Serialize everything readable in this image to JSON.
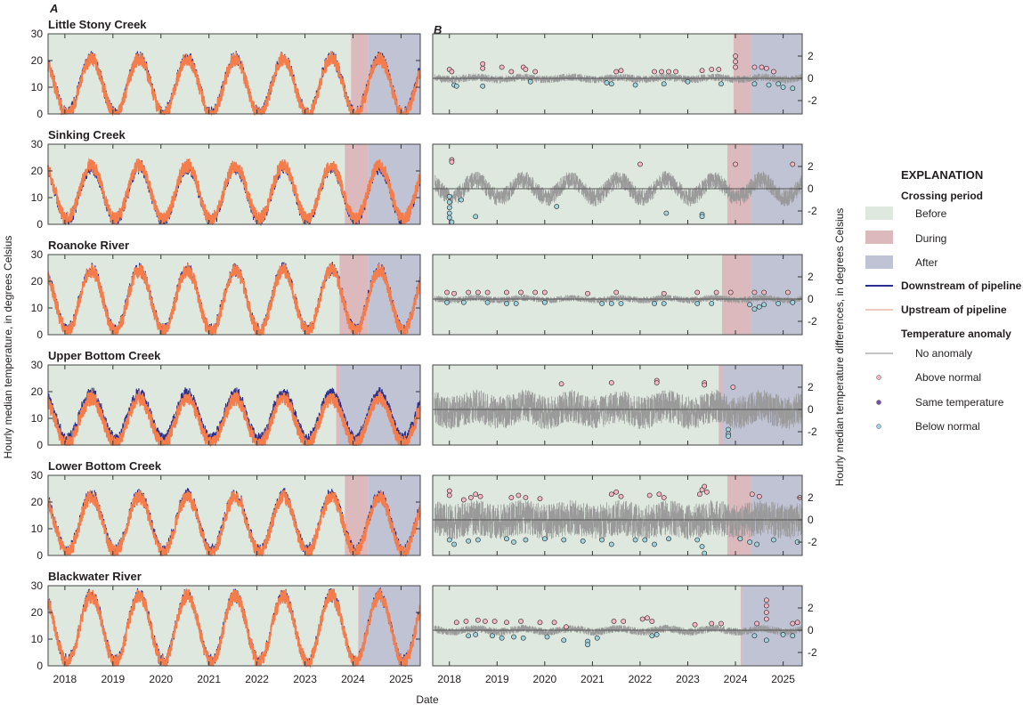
{
  "figure": {
    "panel_a_letter": "A",
    "panel_b_letter": "B",
    "left_ylabel": "Hourly median temperature, in degrees Celsius",
    "right_ylabel": "Hourly median temperature differences, in degrees Celsius",
    "xlabel": "Date"
  },
  "legend": {
    "title": "EXPLANATION",
    "crossing_heading": "Crossing period",
    "before": "Before",
    "during": "During",
    "after": "After",
    "downstream": "Downstream of pipeline",
    "upstream": "Upstream of pipeline",
    "anomaly_heading": "Temperature anomaly",
    "no_anomaly": "No anomaly",
    "above": "Above normal",
    "same": "Same temperature",
    "below": "Below normal"
  },
  "colors": {
    "before": "#dfe8df",
    "during": "#dcb9bd",
    "after": "#bfc3d4",
    "downstream": "#2b2e8c",
    "upstream": "#f47d4b",
    "no_anomaly": "#9a9a9a",
    "above": "#f5b5c3",
    "same": "#7b4ca3",
    "below": "#9fd3dd"
  },
  "chart_data": {
    "type": "line",
    "x_ticks": [
      "2018",
      "2019",
      "2020",
      "2021",
      "2022",
      "2023",
      "2024",
      "2025"
    ],
    "xlim": [
      2017.65,
      2025.4
    ],
    "left_ylim": [
      0,
      30
    ],
    "left_yticks": [
      "0",
      "10",
      "20",
      "30"
    ],
    "right_ylim": [
      -3.2,
      4
    ],
    "right_yticks": [
      "2",
      "0",
      "-2"
    ],
    "sites": [
      {
        "name": "Little Stony Creek",
        "during": [
          2023.96,
          2024.32
        ],
        "after": [
          2024.32,
          2025.4
        ],
        "down_mean": 10.5,
        "down_amp": 10.5,
        "up_offset": -0.4,
        "anom_band": 0.35,
        "anom_season": 0.1,
        "above": [
          [
            2018.0,
            0.8
          ],
          [
            2018.05,
            0.6
          ],
          [
            2018.7,
            1.3
          ],
          [
            2018.7,
            0.9
          ],
          [
            2019.1,
            1.0
          ],
          [
            2019.3,
            0.6
          ],
          [
            2019.55,
            1.0
          ],
          [
            2019.6,
            0.8
          ],
          [
            2019.8,
            0.6
          ],
          [
            2021.5,
            0.6
          ],
          [
            2021.6,
            0.7
          ],
          [
            2022.3,
            0.6
          ],
          [
            2022.45,
            0.6
          ],
          [
            2022.6,
            0.6
          ],
          [
            2022.75,
            0.6
          ],
          [
            2023.3,
            0.7
          ],
          [
            2023.5,
            0.8
          ],
          [
            2023.65,
            0.8
          ],
          [
            2024.0,
            2.0
          ],
          [
            2024.0,
            1.5
          ],
          [
            2024.0,
            1.0
          ],
          [
            2024.4,
            1.0
          ],
          [
            2024.55,
            1.0
          ],
          [
            2024.65,
            0.9
          ],
          [
            2024.8,
            0.6
          ]
        ],
        "below": [
          [
            2018.1,
            -0.6
          ],
          [
            2018.15,
            -0.7
          ],
          [
            2018.7,
            -0.7
          ],
          [
            2019.7,
            -0.3
          ],
          [
            2021.3,
            -0.4
          ],
          [
            2021.4,
            -0.5
          ],
          [
            2021.9,
            -0.6
          ],
          [
            2022.5,
            -0.5
          ],
          [
            2023.0,
            -0.3
          ],
          [
            2023.7,
            -0.5
          ],
          [
            2024.4,
            -0.5
          ],
          [
            2024.7,
            -0.6
          ],
          [
            2024.9,
            -0.5
          ],
          [
            2025.0,
            -0.8
          ],
          [
            2025.2,
            -0.9
          ]
        ]
      },
      {
        "name": "Sinking Creek",
        "during": [
          2023.83,
          2024.32
        ],
        "after": [
          2024.32,
          2025.4
        ],
        "down_mean": 11.5,
        "down_amp": 10,
        "up_offset": 0.5,
        "anom_band": 0.8,
        "anom_season": 0.8,
        "above": [
          [
            2018.05,
            2.6
          ],
          [
            2018.05,
            2.4
          ],
          [
            2022.0,
            2.2
          ],
          [
            2024.0,
            2.2
          ],
          [
            2025.2,
            2.2
          ]
        ],
        "below": [
          [
            2018.0,
            -0.7
          ],
          [
            2018.0,
            -1.2
          ],
          [
            2018.0,
            -1.7
          ],
          [
            2018.0,
            -2.2
          ],
          [
            2018.0,
            -2.6
          ],
          [
            2018.05,
            -3.0
          ],
          [
            2018.25,
            -1.0
          ],
          [
            2018.55,
            -2.5
          ],
          [
            2020.25,
            -1.6
          ],
          [
            2022.55,
            -2.2
          ],
          [
            2023.3,
            -2.3
          ],
          [
            2023.3,
            -2.5
          ]
        ]
      },
      {
        "name": "Roanoke River",
        "during": [
          2023.72,
          2024.32
        ],
        "after": [
          2024.32,
          2025.4
        ],
        "down_mean": 13,
        "down_amp": 11.5,
        "up_offset": -0.3,
        "anom_band": 0.3,
        "anom_season": 0.1,
        "above": [
          [
            2017.95,
            0.6
          ],
          [
            2018.1,
            0.5
          ],
          [
            2018.4,
            0.6
          ],
          [
            2018.6,
            0.6
          ],
          [
            2018.8,
            0.6
          ],
          [
            2019.2,
            0.6
          ],
          [
            2019.5,
            0.6
          ],
          [
            2019.8,
            0.6
          ],
          [
            2020.0,
            0.6
          ],
          [
            2020.9,
            0.5
          ],
          [
            2021.5,
            0.6
          ],
          [
            2022.5,
            0.5
          ],
          [
            2023.2,
            0.6
          ],
          [
            2023.6,
            0.6
          ],
          [
            2023.9,
            0.6
          ],
          [
            2024.4,
            0.6
          ],
          [
            2024.6,
            0.6
          ],
          [
            2025.1,
            0.6
          ]
        ],
        "below": [
          [
            2017.95,
            -0.3
          ],
          [
            2018.3,
            -0.3
          ],
          [
            2018.8,
            -0.3
          ],
          [
            2019.2,
            -0.4
          ],
          [
            2019.4,
            -0.4
          ],
          [
            2020.0,
            -0.3
          ],
          [
            2021.2,
            -0.4
          ],
          [
            2021.4,
            -0.4
          ],
          [
            2021.6,
            -0.4
          ],
          [
            2022.3,
            -0.4
          ],
          [
            2022.5,
            -0.4
          ],
          [
            2023.2,
            -0.4
          ],
          [
            2023.5,
            -0.4
          ],
          [
            2024.3,
            -0.5
          ],
          [
            2024.4,
            -0.9
          ],
          [
            2024.5,
            -0.7
          ],
          [
            2024.6,
            -0.5
          ],
          [
            2024.9,
            -0.4
          ],
          [
            2025.2,
            -0.3
          ]
        ]
      },
      {
        "name": "Upper Bottom Creek",
        "during": [
          2023.65,
          2023.72
        ],
        "after": [
          2023.72,
          2025.4
        ],
        "down_mean": 10.5,
        "down_amp": 8.5,
        "up_offset": -1.5,
        "anom_band": 1.5,
        "anom_season": 0.3,
        "above": [
          [
            2020.35,
            2.3
          ],
          [
            2021.4,
            2.4
          ],
          [
            2022.35,
            2.6
          ],
          [
            2022.35,
            2.4
          ],
          [
            2023.35,
            2.4
          ],
          [
            2023.35,
            2.2
          ],
          [
            2023.95,
            2.0
          ]
        ],
        "below": [
          [
            2023.85,
            -1.8
          ],
          [
            2023.85,
            -2.2
          ],
          [
            2023.85,
            -2.4
          ]
        ]
      },
      {
        "name": "Lower Bottom Creek",
        "during": [
          2023.83,
          2024.32
        ],
        "after": [
          2024.32,
          2025.4
        ],
        "down_mean": 12,
        "down_amp": 10.5,
        "up_offset": -0.5,
        "anom_band": 1.6,
        "anom_season": 0.2,
        "above": [
          [
            2018.0,
            2.6
          ],
          [
            2018.0,
            2.2
          ],
          [
            2018.3,
            1.8
          ],
          [
            2018.45,
            2.0
          ],
          [
            2018.55,
            2.3
          ],
          [
            2018.65,
            2.1
          ],
          [
            2019.3,
            2.0
          ],
          [
            2019.45,
            2.2
          ],
          [
            2019.6,
            2.0
          ],
          [
            2019.9,
            1.9
          ],
          [
            2021.4,
            2.3
          ],
          [
            2021.5,
            2.5
          ],
          [
            2021.6,
            2.1
          ],
          [
            2022.2,
            2.2
          ],
          [
            2022.4,
            2.3
          ],
          [
            2022.5,
            2.0
          ],
          [
            2023.25,
            2.3
          ],
          [
            2023.3,
            2.7
          ],
          [
            2023.35,
            3.0
          ],
          [
            2023.4,
            2.5
          ],
          [
            2024.35,
            2.3
          ],
          [
            2024.5,
            2.1
          ],
          [
            2025.35,
            2.0
          ]
        ],
        "below": [
          [
            2018.0,
            -1.8
          ],
          [
            2018.1,
            -2.2
          ],
          [
            2018.4,
            -1.9
          ],
          [
            2018.6,
            -1.8
          ],
          [
            2019.2,
            -1.7
          ],
          [
            2019.35,
            -2.0
          ],
          [
            2019.6,
            -1.8
          ],
          [
            2020.0,
            -1.7
          ],
          [
            2020.4,
            -1.8
          ],
          [
            2020.8,
            -1.9
          ],
          [
            2021.2,
            -1.8
          ],
          [
            2021.4,
            -2.2
          ],
          [
            2021.9,
            -1.8
          ],
          [
            2022.1,
            -1.8
          ],
          [
            2022.3,
            -2.2
          ],
          [
            2022.6,
            -1.7
          ],
          [
            2023.2,
            -1.8
          ],
          [
            2023.3,
            -2.4
          ],
          [
            2023.35,
            -3.0
          ],
          [
            2024.1,
            -1.7
          ],
          [
            2024.3,
            -2.0
          ],
          [
            2024.45,
            -2.2
          ],
          [
            2024.8,
            -1.8
          ],
          [
            2025.3,
            -2.0
          ]
        ]
      },
      {
        "name": "Blackwater River",
        "during": [
          2024.11,
          2024.15
        ],
        "after": [
          2024.15,
          2025.4
        ],
        "down_mean": 14,
        "down_amp": 12.5,
        "up_offset": -0.3,
        "anom_band": 0.35,
        "anom_season": 0.15,
        "above": [
          [
            2018.15,
            0.7
          ],
          [
            2018.35,
            0.8
          ],
          [
            2018.6,
            0.9
          ],
          [
            2018.75,
            0.8
          ],
          [
            2018.95,
            0.8
          ],
          [
            2019.2,
            0.7
          ],
          [
            2019.5,
            0.8
          ],
          [
            2019.9,
            0.7
          ],
          [
            2020.2,
            0.7
          ],
          [
            2020.45,
            0.3
          ],
          [
            2021.45,
            0.8
          ],
          [
            2021.65,
            0.8
          ],
          [
            2022.05,
            1.0
          ],
          [
            2022.15,
            1.1
          ],
          [
            2022.25,
            0.8
          ],
          [
            2023.15,
            0.5
          ],
          [
            2023.5,
            0.6
          ],
          [
            2023.7,
            0.6
          ],
          [
            2024.45,
            0.6
          ],
          [
            2024.65,
            2.7
          ],
          [
            2024.65,
            2.2
          ],
          [
            2024.65,
            1.6
          ],
          [
            2024.65,
            1.0
          ],
          [
            2025.2,
            0.6
          ],
          [
            2025.3,
            0.7
          ]
        ],
        "below": [
          [
            2018.4,
            -0.5
          ],
          [
            2018.55,
            -0.4
          ],
          [
            2018.9,
            -0.5
          ],
          [
            2019.1,
            -0.7
          ],
          [
            2019.35,
            -0.6
          ],
          [
            2019.55,
            -0.7
          ],
          [
            2020.05,
            -0.6
          ],
          [
            2020.4,
            -0.9
          ],
          [
            2020.9,
            -1.0
          ],
          [
            2020.9,
            -1.3
          ],
          [
            2021.1,
            -0.7
          ],
          [
            2022.25,
            -0.5
          ],
          [
            2022.35,
            -0.4
          ],
          [
            2024.4,
            -0.5
          ],
          [
            2024.65,
            -0.9
          ],
          [
            2025.0,
            -0.4
          ],
          [
            2025.2,
            -0.5
          ]
        ]
      }
    ]
  }
}
